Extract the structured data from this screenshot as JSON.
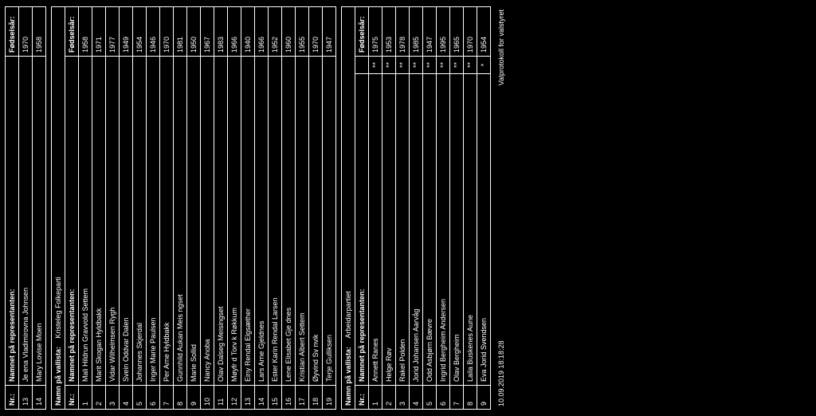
{
  "columns": {
    "nr": "Nr.:",
    "name": "Namnet på representanten:",
    "year": "Fødselsår:"
  },
  "section1": {
    "rows": [
      {
        "nr": "13",
        "name": "Je ena Vladimirovna Johnsen",
        "year": "1970"
      },
      {
        "nr": "14",
        "name": "Mary Lovise Moen",
        "year": "1958"
      }
    ]
  },
  "section2": {
    "heading_label": "Namn på vallista:",
    "party": "Kristeleg Folkeparti",
    "rows": [
      {
        "nr": "1",
        "name": "Mali Hildrun Gravvold Settem",
        "year": "1958"
      },
      {
        "nr": "2",
        "name": "Marit Skogan Hyldbakk",
        "year": "1971"
      },
      {
        "nr": "3",
        "name": "Vidar Wilhelmsen Rygh",
        "year": "1977"
      },
      {
        "nr": "4",
        "name": "Svein Oddvar Dalen",
        "year": "1949"
      },
      {
        "nr": "5",
        "name": "Johannes Skjerdal",
        "year": "1954"
      },
      {
        "nr": "6",
        "name": "Inger Marie Paulsen",
        "year": "1946"
      },
      {
        "nr": "7",
        "name": "Per Arne Hyldbakk",
        "year": "1970"
      },
      {
        "nr": "8",
        "name": "Gunnhild Aukan Meis ngset",
        "year": "1981"
      },
      {
        "nr": "9",
        "name": "Marie Sollid",
        "year": "1950"
      },
      {
        "nr": "10",
        "name": "Nancy Anoba",
        "year": "1967"
      },
      {
        "nr": "11",
        "name": "Olav Dalseg Meisingset",
        "year": "1983"
      },
      {
        "nr": "12",
        "name": "Møyfr d Torv k Røkkum",
        "year": "1966"
      },
      {
        "nr": "13",
        "name": "Einy Rendal Elgsæther",
        "year": "1940"
      },
      {
        "nr": "14",
        "name": "Lars Arne Gjeldnes",
        "year": "1966"
      },
      {
        "nr": "15",
        "name": "Ester Karin Rendal Larsen",
        "year": "1952"
      },
      {
        "nr": "16",
        "name": "Lene Elisabet Gje dnes",
        "year": "1960"
      },
      {
        "nr": "17",
        "name": "Kristian Albert Settem",
        "year": "1955"
      },
      {
        "nr": "18",
        "name": "Øyvind Sv nvik",
        "year": "1970"
      },
      {
        "nr": "19",
        "name": "Terje Gulliksen",
        "year": "1947"
      }
    ]
  },
  "section3": {
    "heading_label": "Namn på vallista:",
    "party": "Arbeidarpartiet",
    "rows": [
      {
        "nr": "1",
        "name": "Annett Ranes",
        "mark": "**",
        "year": "1975"
      },
      {
        "nr": "2",
        "name": "Helge Røv",
        "mark": "**",
        "year": "1953"
      },
      {
        "nr": "3",
        "name": "Rakel Polden",
        "mark": "**",
        "year": "1978"
      },
      {
        "nr": "4",
        "name": "Jorid Johansen Aarvåg",
        "mark": "**",
        "year": "1985"
      },
      {
        "nr": "5",
        "name": "Odd Asbjørn Bævre",
        "mark": "**",
        "year": "1947"
      },
      {
        "nr": "6",
        "name": "Ingrid Bergheim Andersen",
        "mark": "**",
        "year": "1995"
      },
      {
        "nr": "7",
        "name": "Olav Bergheim",
        "mark": "**",
        "year": "1965"
      },
      {
        "nr": "8",
        "name": "Laila Buskenes Aune",
        "mark": "**",
        "year": "1970"
      },
      {
        "nr": "9",
        "name": "Eva Jorid Svendsen",
        "mark": "*",
        "year": "1954"
      }
    ]
  },
  "footer": {
    "left": "10.09.2019 18:18:28",
    "right": "Valprotokoll for valstyret"
  }
}
